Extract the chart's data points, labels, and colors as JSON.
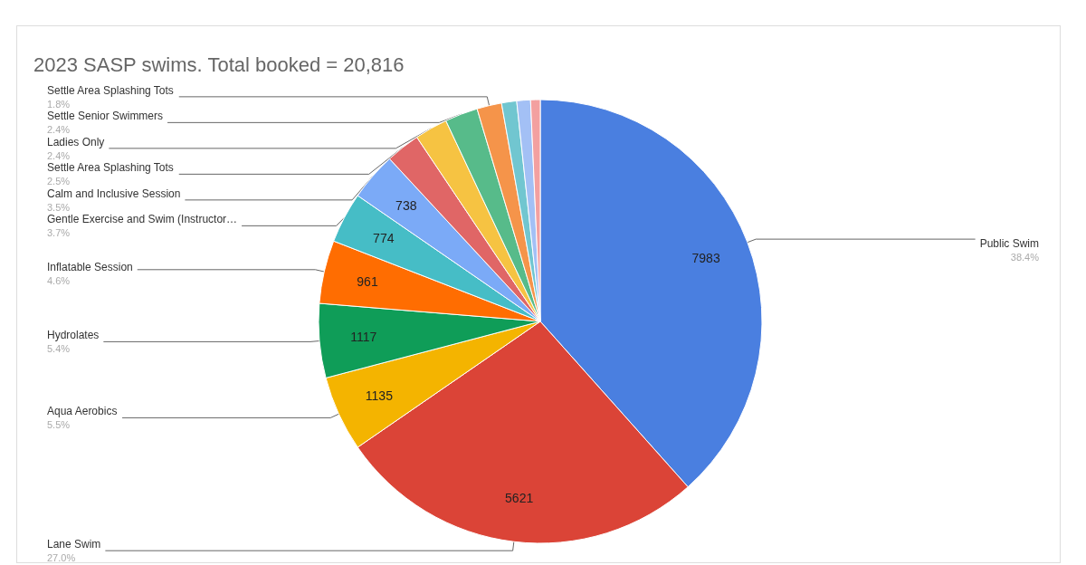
{
  "chart_data": {
    "type": "pie",
    "title": "2023 SASP swims. Total booked = 20,816",
    "categories": [
      "Public Swim",
      "Lane Swim",
      "Aqua Aerobics",
      "Hydrolates",
      "Inflatable Session",
      "Gentle Exercise and Swim (Instructor…",
      "Calm and Inclusive Session",
      "Settle Area Splashing Tots",
      "Ladies Only",
      "Settle Senior Swimmers",
      "Settle Area Splashing Tots",
      null,
      null,
      null
    ],
    "values": [
      38.4,
      27.0,
      5.5,
      5.4,
      4.6,
      3.7,
      3.5,
      2.5,
      2.4,
      2.4,
      1.8,
      1.1,
      1.0,
      0.7
    ],
    "colors": [
      "#4a7fe0",
      "#db4437",
      "#f4b400",
      "#0f9d58",
      "#ff6d01",
      "#46bdc6",
      "#7baaf7",
      "#e06666",
      "#f6c342",
      "#57bb8a",
      "#f5944a",
      "#71c6d0",
      "#a3c0f5",
      "#f3a0a0"
    ],
    "value_labels": [
      "38.4%",
      "27.0%",
      "5.5%",
      "5.4%",
      "4.6%",
      "3.7%",
      "3.5%",
      "2.5%",
      "2.4%",
      "2.4%",
      "1.8%",
      null,
      null,
      null
    ],
    "annotations": [
      "7983",
      "5621",
      "1135",
      "1117",
      "961",
      "774",
      "738"
    ],
    "legend": false
  }
}
